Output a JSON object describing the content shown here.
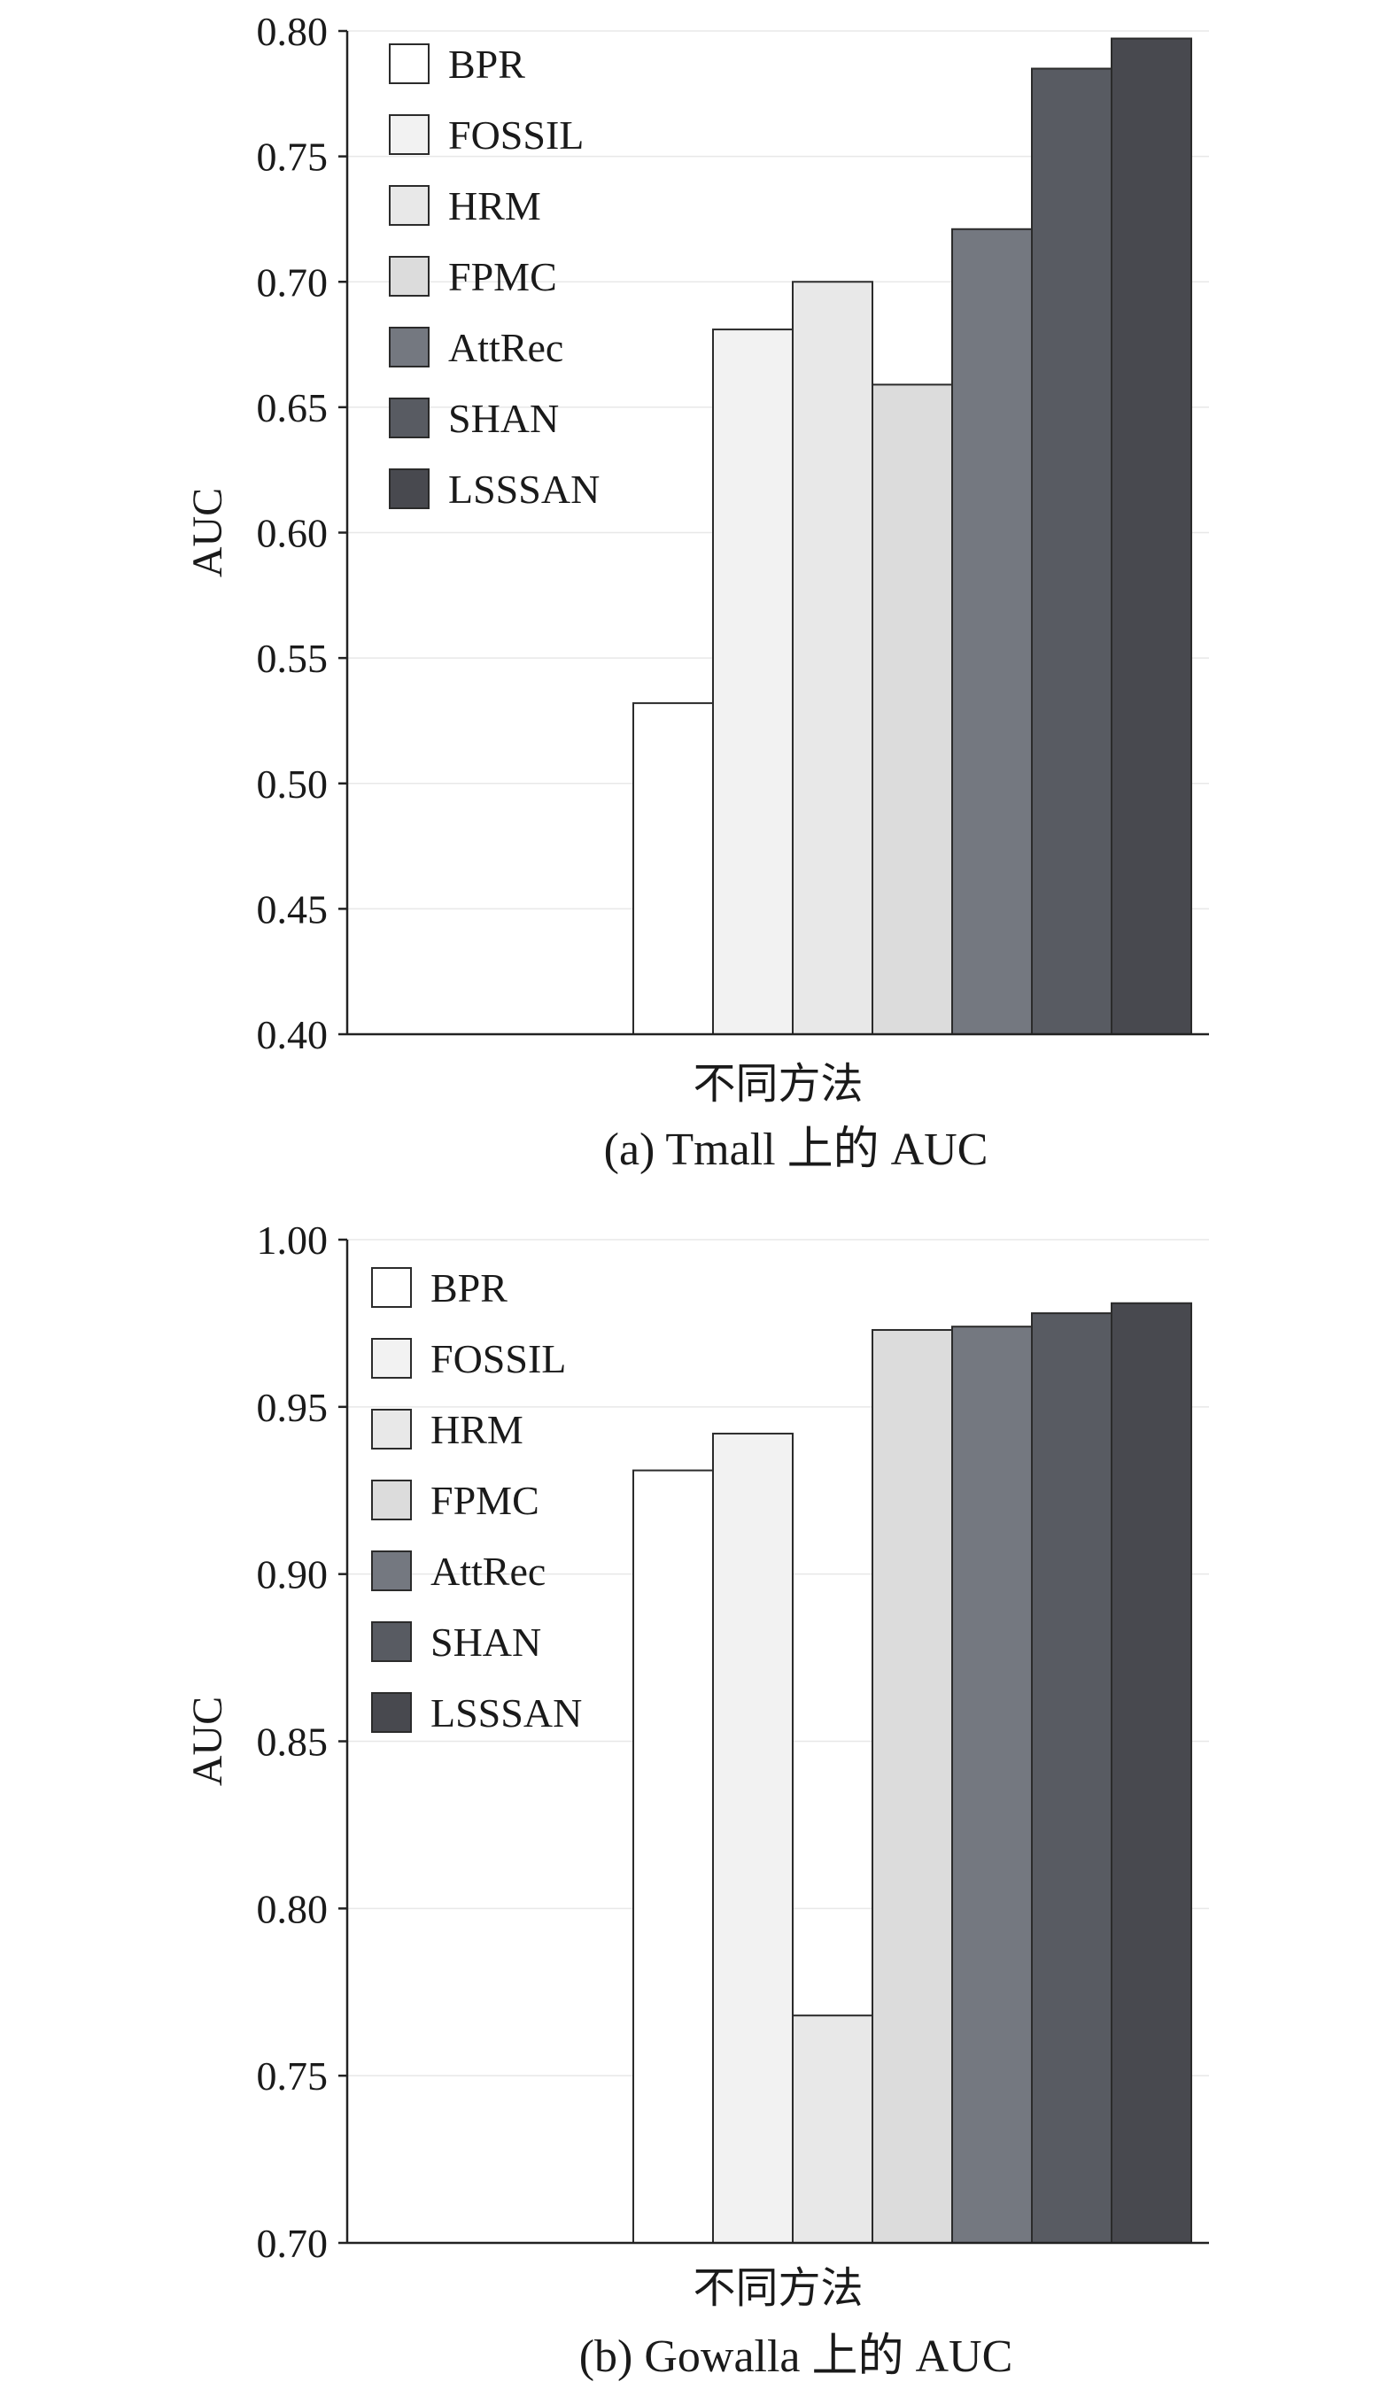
{
  "chart_data": [
    {
      "type": "bar",
      "xlabel": "不同方法",
      "ylabel": "AUC",
      "caption": "(a) Tmall 上的 AUC",
      "ylim": [
        0.4,
        0.8
      ],
      "yticks": [
        "0.40",
        "0.45",
        "0.50",
        "0.55",
        "0.60",
        "0.65",
        "0.70",
        "0.75",
        "0.80"
      ],
      "grid": true,
      "legend_position": "top-left",
      "series": [
        {
          "name": "BPR",
          "value": 0.532,
          "color": "#ffffff"
        },
        {
          "name": "FOSSIL",
          "value": 0.681,
          "color": "#f2f2f2"
        },
        {
          "name": "HRM",
          "value": 0.7,
          "color": "#e8e8e8"
        },
        {
          "name": "FPMC",
          "value": 0.659,
          "color": "#dcdcdc"
        },
        {
          "name": "AttRec",
          "value": 0.721,
          "color": "#747880"
        },
        {
          "name": "SHAN",
          "value": 0.785,
          "color": "#585b62"
        },
        {
          "name": "LSSSAN",
          "value": 0.797,
          "color": "#48494f"
        }
      ]
    },
    {
      "type": "bar",
      "xlabel": "不同方法",
      "ylabel": "AUC",
      "caption": "(b) Gowalla 上的 AUC",
      "ylim": [
        0.7,
        1.0
      ],
      "yticks": [
        "0.70",
        "0.75",
        "0.80",
        "0.85",
        "0.90",
        "0.95",
        "1.00"
      ],
      "grid": true,
      "legend_position": "top-left",
      "series": [
        {
          "name": "BPR",
          "value": 0.931,
          "color": "#ffffff"
        },
        {
          "name": "FOSSIL",
          "value": 0.942,
          "color": "#f2f2f2"
        },
        {
          "name": "HRM",
          "value": 0.768,
          "color": "#e8e8e8"
        },
        {
          "name": "FPMC",
          "value": 0.973,
          "color": "#dcdcdc"
        },
        {
          "name": "AttRec",
          "value": 0.974,
          "color": "#747880"
        },
        {
          "name": "SHAN",
          "value": 0.978,
          "color": "#585b62"
        },
        {
          "name": "LSSSAN",
          "value": 0.981,
          "color": "#48494f"
        }
      ]
    }
  ]
}
